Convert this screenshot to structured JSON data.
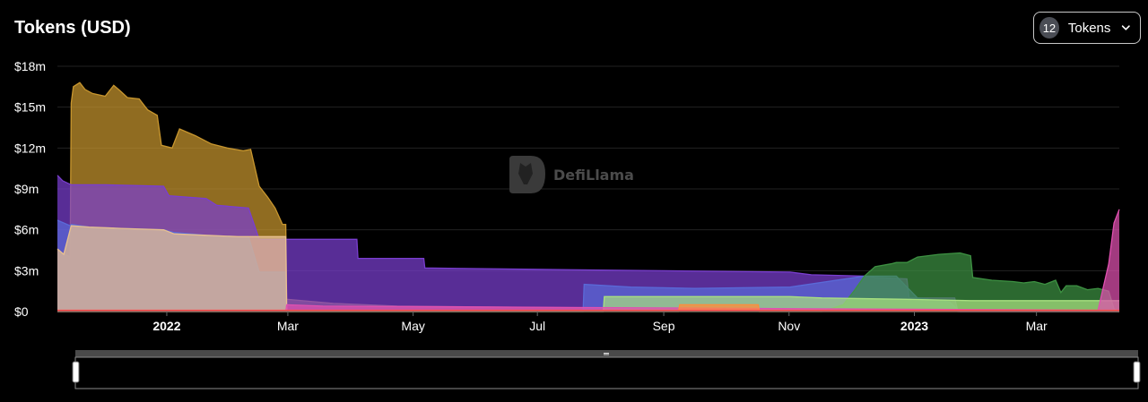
{
  "header": {
    "title": "Tokens (USD)",
    "selector_count": "12",
    "selector_label": "Tokens"
  },
  "watermark": "DefiLlama",
  "chart_data": {
    "type": "area",
    "stacked": false,
    "title": "Tokens (USD)",
    "xlabel": "",
    "ylabel": "",
    "x_ticks": [
      {
        "t": 0.103,
        "label": "2022",
        "bold": true
      },
      {
        "t": 0.217,
        "label": "Mar",
        "bold": false
      },
      {
        "t": 0.335,
        "label": "May",
        "bold": false
      },
      {
        "t": 0.452,
        "label": "Jul",
        "bold": false
      },
      {
        "t": 0.571,
        "label": "Sep",
        "bold": false
      },
      {
        "t": 0.689,
        "label": "Nov",
        "bold": false
      },
      {
        "t": 0.807,
        "label": "2023",
        "bold": true
      },
      {
        "t": 0.922,
        "label": "Mar",
        "bold": false
      }
    ],
    "y_ticks": [
      {
        "v": 0,
        "label": "$0"
      },
      {
        "v": 3,
        "label": "$3m"
      },
      {
        "v": 6,
        "label": "$6m"
      },
      {
        "v": 9,
        "label": "$9m"
      },
      {
        "v": 12,
        "label": "$12m"
      },
      {
        "v": 15,
        "label": "$15m"
      },
      {
        "v": 18,
        "label": "$18m"
      }
    ],
    "ylim": [
      0,
      18
    ],
    "units": "USD millions",
    "grid": true,
    "legend": false,
    "series": [
      {
        "color": "#c8962e",
        "points": [
          [
            0,
            4.5
          ],
          [
            0.005,
            4.3
          ],
          [
            0.012,
            4.0
          ],
          [
            0.013,
            15.3
          ],
          [
            0.015,
            16.5
          ],
          [
            0.021,
            16.8
          ],
          [
            0.026,
            16.3
          ],
          [
            0.033,
            16.0
          ],
          [
            0.045,
            15.8
          ],
          [
            0.053,
            16.6
          ],
          [
            0.059,
            16.2
          ],
          [
            0.066,
            15.7
          ],
          [
            0.077,
            15.6
          ],
          [
            0.085,
            14.8
          ],
          [
            0.094,
            14.4
          ],
          [
            0.098,
            12.2
          ],
          [
            0.108,
            12.0
          ],
          [
            0.115,
            13.4
          ],
          [
            0.13,
            12.9
          ],
          [
            0.145,
            12.3
          ],
          [
            0.16,
            12.0
          ],
          [
            0.175,
            11.8
          ],
          [
            0.182,
            11.9
          ],
          [
            0.19,
            9.2
          ],
          [
            0.198,
            8.4
          ],
          [
            0.205,
            7.6
          ],
          [
            0.212,
            6.4
          ],
          [
            0.215,
            6.4
          ],
          [
            0.216,
            0.9
          ],
          [
            0.26,
            0.6
          ],
          [
            0.32,
            0.4
          ],
          [
            0.45,
            0.3
          ],
          [
            1,
            0.0
          ]
        ]
      },
      {
        "color": "#7a3ed0",
        "points": [
          [
            0,
            10.0
          ],
          [
            0.005,
            9.6
          ],
          [
            0.013,
            9.3
          ],
          [
            0.045,
            9.3
          ],
          [
            0.1,
            9.2
          ],
          [
            0.105,
            8.5
          ],
          [
            0.14,
            8.3
          ],
          [
            0.15,
            7.8
          ],
          [
            0.18,
            7.6
          ],
          [
            0.19,
            5.3
          ],
          [
            0.215,
            5.3
          ],
          [
            0.216,
            5.3
          ],
          [
            0.26,
            5.3
          ],
          [
            0.282,
            5.3
          ],
          [
            0.283,
            3.9
          ],
          [
            0.345,
            3.9
          ],
          [
            0.346,
            3.2
          ],
          [
            0.45,
            3.1
          ],
          [
            0.69,
            2.9
          ],
          [
            0.71,
            2.7
          ],
          [
            0.76,
            2.6
          ],
          [
            0.77,
            2.5
          ],
          [
            0.8,
            2.4
          ],
          [
            0.802,
            1.0
          ],
          [
            0.845,
            1.0
          ],
          [
            0.848,
            0.0
          ],
          [
            1,
            0.0
          ]
        ]
      },
      {
        "color": "#5a6ad8",
        "points": [
          [
            0,
            6.7
          ],
          [
            0.012,
            6.3
          ],
          [
            0.013,
            6.4
          ],
          [
            0.03,
            6.2
          ],
          [
            0.06,
            6.1
          ],
          [
            0.1,
            6.0
          ],
          [
            0.11,
            5.8
          ],
          [
            0.14,
            5.6
          ],
          [
            0.17,
            5.5
          ],
          [
            0.18,
            5.5
          ],
          [
            0.19,
            2.9
          ],
          [
            0.215,
            2.9
          ],
          [
            0.216,
            0.0
          ],
          [
            0.495,
            0.0
          ],
          [
            0.496,
            2.0
          ],
          [
            0.54,
            1.8
          ],
          [
            0.6,
            1.7
          ],
          [
            0.69,
            1.8
          ],
          [
            0.76,
            2.6
          ],
          [
            0.79,
            2.6
          ],
          [
            0.81,
            1.0
          ],
          [
            0.84,
            0.7
          ],
          [
            0.85,
            0.0
          ],
          [
            1,
            0.0
          ]
        ]
      },
      {
        "color": "#e8c090",
        "points": [
          [
            0,
            4.6
          ],
          [
            0.006,
            4.2
          ],
          [
            0.013,
            6.3
          ],
          [
            0.03,
            6.2
          ],
          [
            0.06,
            6.1
          ],
          [
            0.1,
            6.0
          ],
          [
            0.11,
            5.7
          ],
          [
            0.14,
            5.6
          ],
          [
            0.17,
            5.5
          ],
          [
            0.19,
            5.5
          ],
          [
            0.215,
            5.5
          ],
          [
            0.216,
            0.0
          ],
          [
            1,
            0.0
          ]
        ]
      },
      {
        "color": "#3d9142",
        "points": [
          [
            0,
            0.0
          ],
          [
            0.72,
            0.0
          ],
          [
            0.74,
            0.5
          ],
          [
            0.75,
            1.5
          ],
          [
            0.76,
            2.6
          ],
          [
            0.77,
            3.3
          ],
          [
            0.785,
            3.5
          ],
          [
            0.79,
            3.6
          ],
          [
            0.8,
            3.6
          ],
          [
            0.81,
            4.0
          ],
          [
            0.83,
            4.2
          ],
          [
            0.85,
            4.3
          ],
          [
            0.86,
            4.1
          ],
          [
            0.862,
            2.5
          ],
          [
            0.88,
            2.3
          ],
          [
            0.9,
            2.2
          ],
          [
            0.91,
            2.1
          ],
          [
            0.92,
            2.2
          ],
          [
            0.93,
            2.0
          ],
          [
            0.94,
            2.3
          ],
          [
            0.945,
            1.4
          ],
          [
            0.95,
            1.9
          ],
          [
            0.96,
            1.9
          ],
          [
            0.97,
            1.6
          ],
          [
            0.98,
            1.7
          ],
          [
            0.99,
            1.5
          ],
          [
            0.995,
            0.2
          ],
          [
            1,
            0.0
          ]
        ]
      },
      {
        "color": "#a8e080",
        "points": [
          [
            0,
            0.0
          ],
          [
            0.514,
            0.0
          ],
          [
            0.515,
            1.1
          ],
          [
            0.6,
            1.1
          ],
          [
            0.69,
            1.1
          ],
          [
            0.72,
            1.0
          ],
          [
            0.8,
            0.9
          ],
          [
            0.86,
            0.8
          ],
          [
            0.94,
            0.8
          ],
          [
            1,
            0.8
          ]
        ]
      },
      {
        "color": "#e050b0",
        "points": [
          [
            0,
            0.0
          ],
          [
            0.215,
            0.0
          ],
          [
            0.216,
            0.5
          ],
          [
            0.25,
            0.4
          ],
          [
            0.98,
            0.1
          ],
          [
            0.985,
            1.8
          ],
          [
            0.99,
            3.5
          ],
          [
            0.995,
            6.5
          ],
          [
            1,
            7.5
          ]
        ]
      },
      {
        "color": "#ff8c3a",
        "points": [
          [
            0,
            0.0
          ],
          [
            0.585,
            0.0
          ],
          [
            0.586,
            0.5
          ],
          [
            0.66,
            0.5
          ],
          [
            0.661,
            0.0
          ],
          [
            1,
            0.0
          ]
        ]
      },
      {
        "color": "#ff4a4a",
        "points": [
          [
            0,
            0.1
          ],
          [
            1,
            0.1
          ]
        ]
      }
    ]
  }
}
